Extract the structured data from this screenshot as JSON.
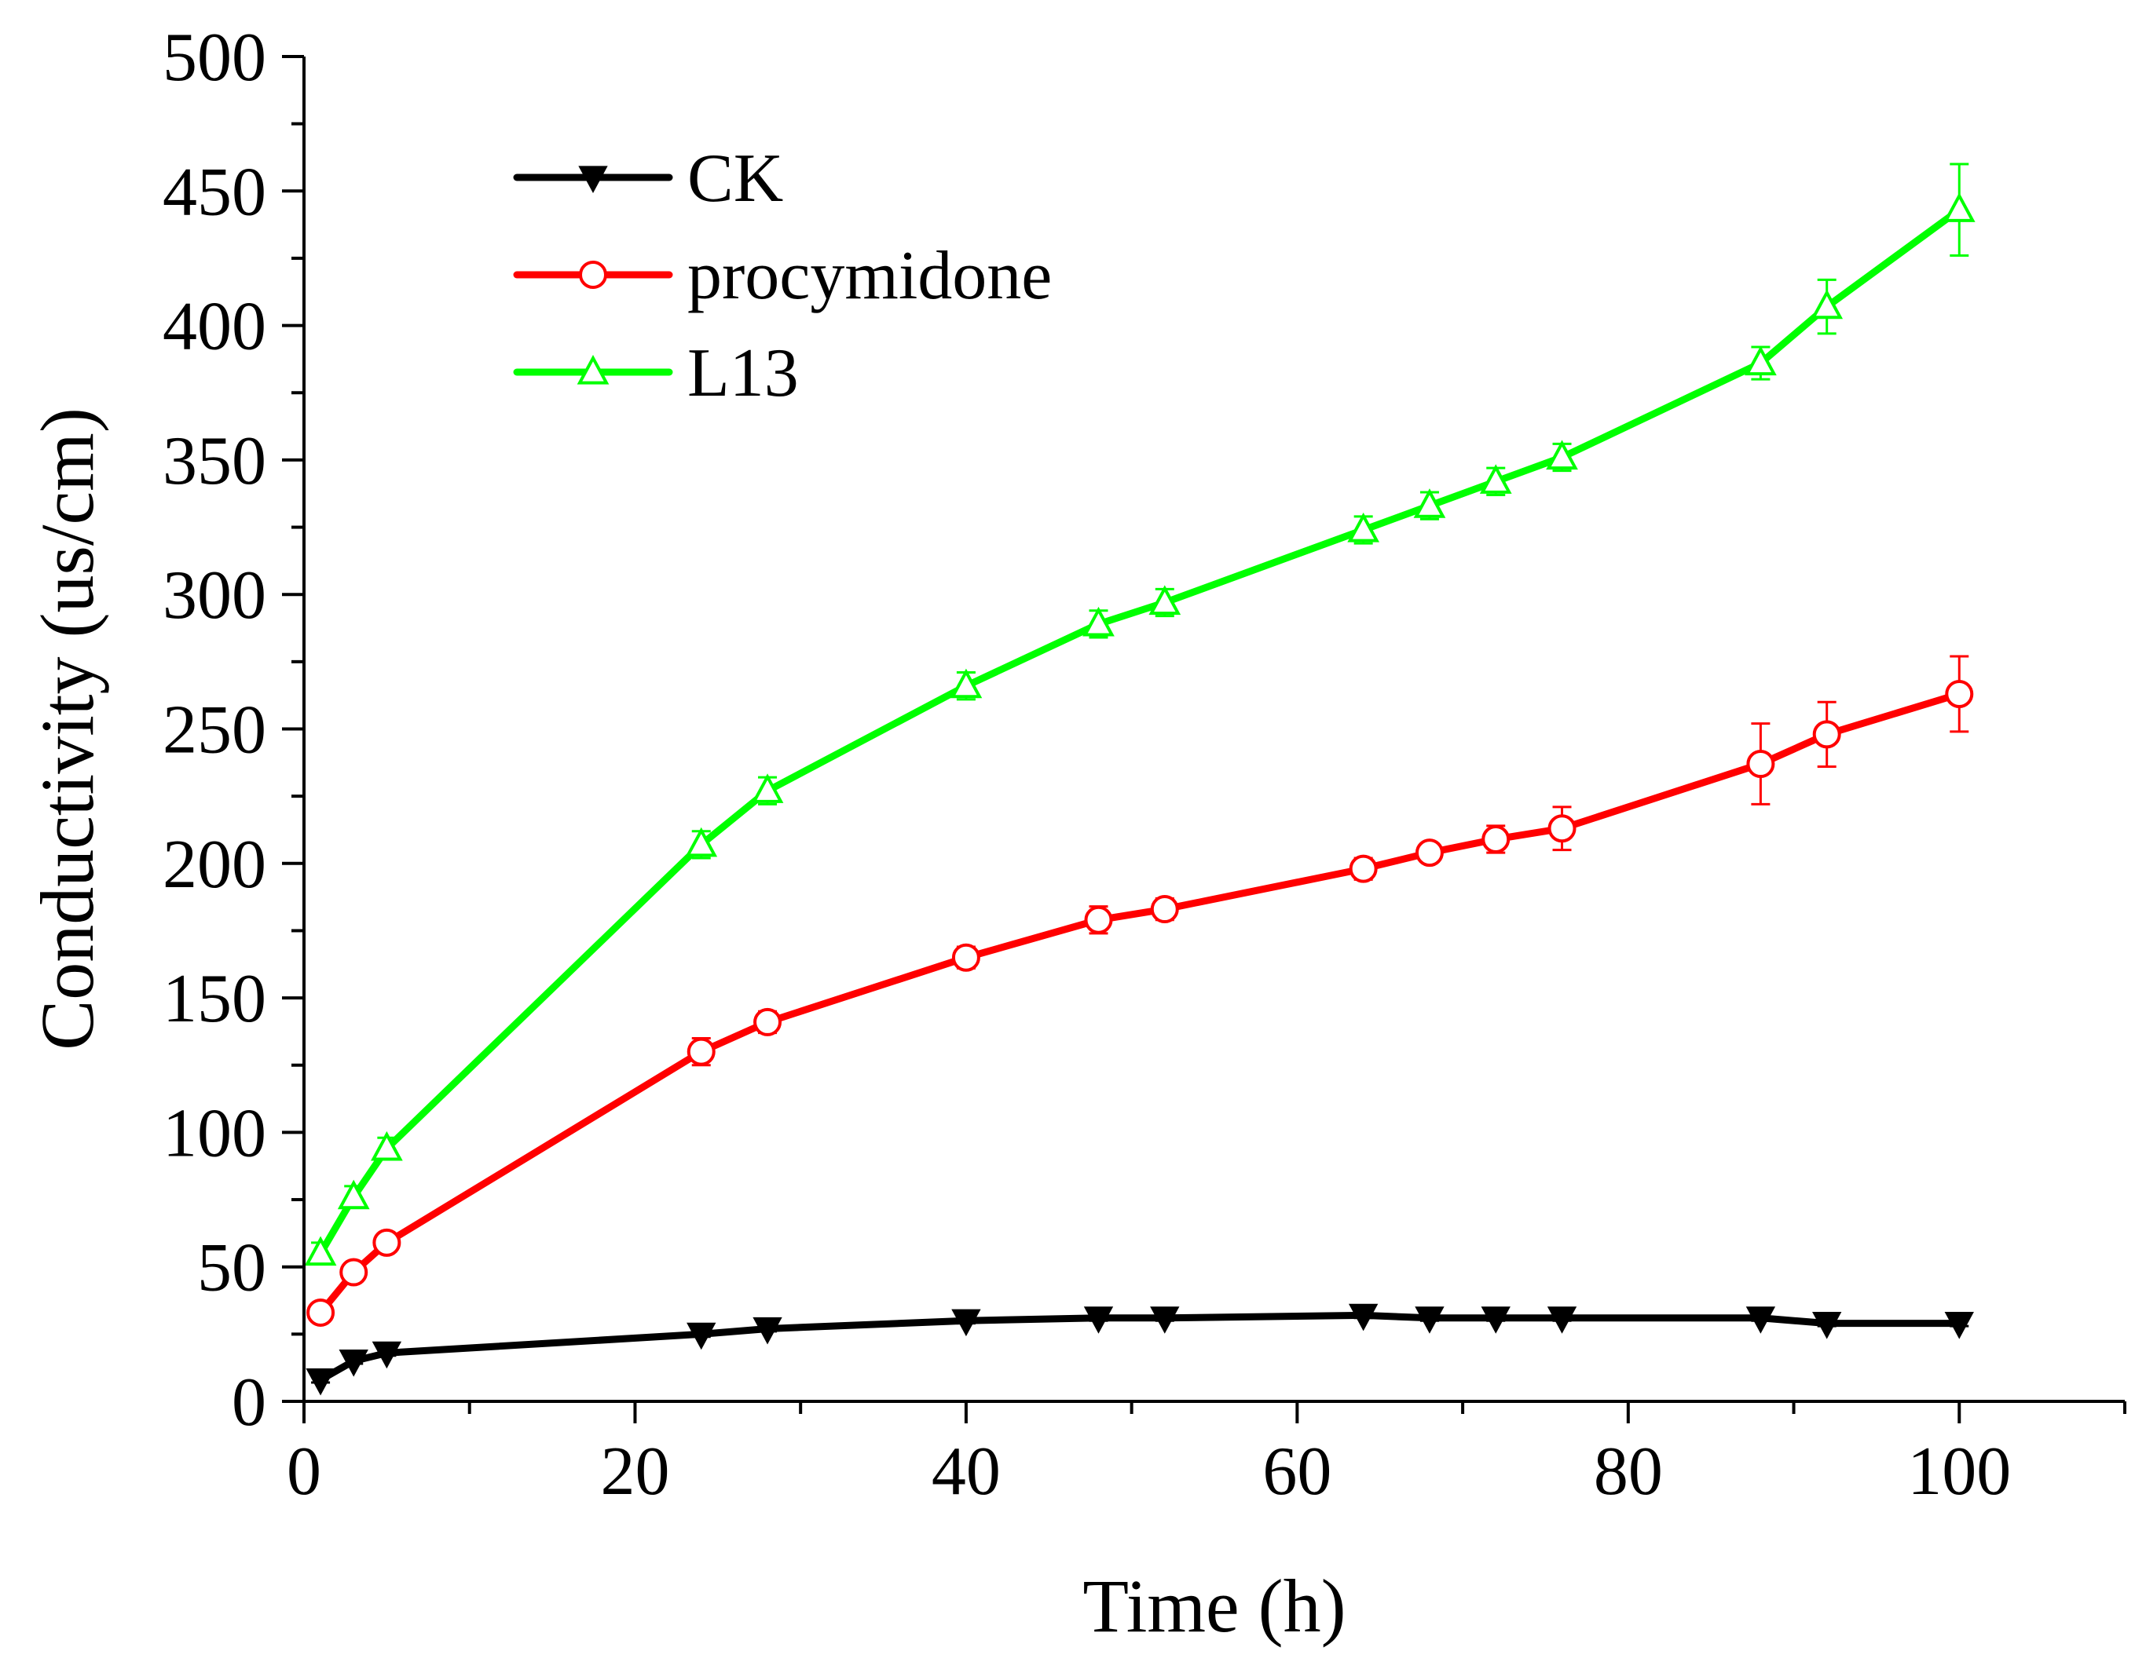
{
  "chart_data": {
    "type": "line",
    "title": "",
    "xlabel": "Time (h)",
    "ylabel": "Conductivity (us/cm)",
    "xlim": [
      0,
      110
    ],
    "ylim": [
      0,
      500
    ],
    "x_ticks": [
      0,
      20,
      40,
      60,
      80,
      100
    ],
    "x_tick_labels": [
      "0",
      "20",
      "40",
      "60",
      "80",
      "100"
    ],
    "x_minor_ticks": [
      10,
      30,
      50,
      70,
      90,
      110
    ],
    "y_ticks": [
      0,
      50,
      100,
      150,
      200,
      250,
      300,
      350,
      400,
      450,
      500
    ],
    "y_tick_labels": [
      "0",
      "50",
      "100",
      "150",
      "200",
      "250",
      "300",
      "350",
      "400",
      "450",
      "500"
    ],
    "y_minor_ticks": [
      25,
      75,
      125,
      175,
      225,
      275,
      325,
      375,
      425,
      475
    ],
    "grid": false,
    "legend_position": "top-left",
    "x": [
      1,
      3,
      5,
      24,
      28,
      40,
      48,
      52,
      64,
      68,
      72,
      76,
      88,
      92,
      100
    ],
    "series": [
      {
        "name": "CK",
        "color": "#000000",
        "marker": "triangle-down-filled",
        "values": [
          8,
          15,
          18,
          25,
          27,
          30,
          31,
          31,
          32,
          31,
          31,
          31,
          31,
          29,
          29
        ],
        "errors": [
          1,
          1,
          1,
          1,
          1,
          1,
          1,
          1,
          1,
          1,
          1,
          1,
          1,
          1,
          1
        ]
      },
      {
        "name": "procymidone",
        "color": "#ff0000",
        "marker": "circle-open",
        "values": [
          33,
          48,
          59,
          130,
          141,
          165,
          179,
          183,
          198,
          204,
          209,
          213,
          237,
          248,
          263
        ],
        "errors": [
          2,
          2,
          3,
          5,
          4,
          4,
          5,
          4,
          4,
          3,
          5,
          8,
          15,
          12,
          14
        ]
      },
      {
        "name": "L13",
        "color": "#00ff00",
        "marker": "triangle-up-open",
        "values": [
          55,
          76,
          94,
          207,
          227,
          266,
          289,
          297,
          324,
          333,
          342,
          351,
          386,
          407,
          443
        ],
        "errors": [
          4,
          4,
          4,
          5,
          5,
          5,
          5,
          5,
          5,
          5,
          5,
          5,
          6,
          10,
          17
        ]
      }
    ]
  }
}
